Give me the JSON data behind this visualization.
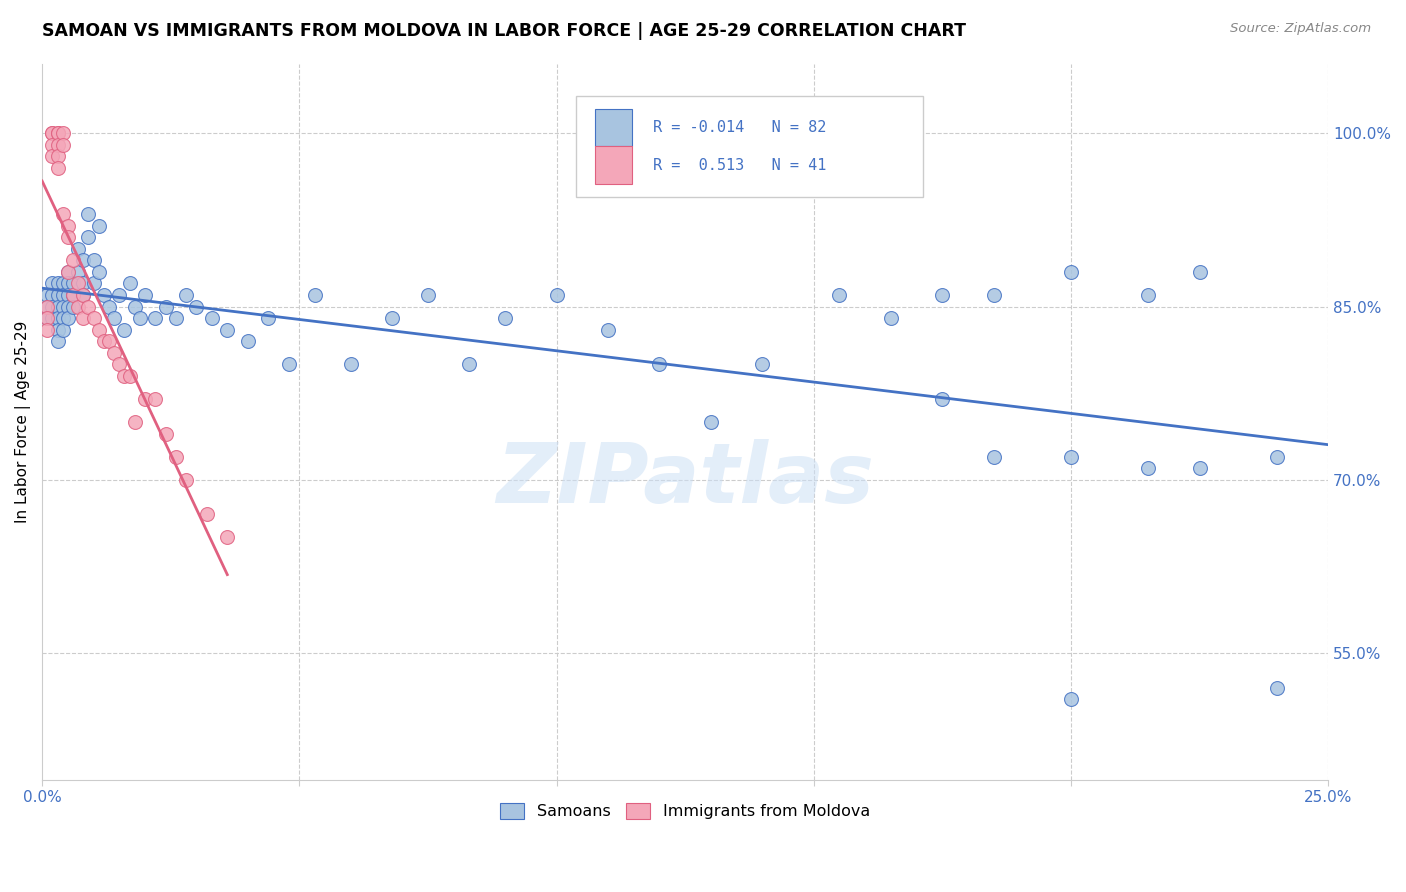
{
  "title": "SAMOAN VS IMMIGRANTS FROM MOLDOVA IN LABOR FORCE | AGE 25-29 CORRELATION CHART",
  "source": "Source: ZipAtlas.com",
  "ylabel": "In Labor Force | Age 25-29",
  "ytick_labels": [
    "100.0%",
    "85.0%",
    "70.0%",
    "55.0%"
  ],
  "ytick_values": [
    1.0,
    0.85,
    0.7,
    0.55
  ],
  "xlim": [
    0.0,
    0.25
  ],
  "ylim": [
    0.44,
    1.06
  ],
  "blue_R": -0.014,
  "blue_N": 82,
  "pink_R": 0.513,
  "pink_N": 41,
  "blue_color": "#a8c4e0",
  "pink_color": "#f4a7b9",
  "trend_blue": "#4472c4",
  "trend_pink": "#e06080",
  "watermark": "ZIPatlas",
  "legend_label_blue": "Samoans",
  "legend_label_pink": "Immigrants from Moldova",
  "blue_x": [
    0.001,
    0.001,
    0.001,
    0.002,
    0.002,
    0.002,
    0.002,
    0.003,
    0.003,
    0.003,
    0.003,
    0.003,
    0.003,
    0.004,
    0.004,
    0.004,
    0.004,
    0.004,
    0.005,
    0.005,
    0.005,
    0.005,
    0.005,
    0.006,
    0.006,
    0.006,
    0.007,
    0.007,
    0.008,
    0.008,
    0.008,
    0.009,
    0.009,
    0.01,
    0.01,
    0.011,
    0.011,
    0.012,
    0.013,
    0.014,
    0.015,
    0.016,
    0.017,
    0.018,
    0.019,
    0.02,
    0.022,
    0.024,
    0.026,
    0.028,
    0.03,
    0.033,
    0.036,
    0.04,
    0.044,
    0.048,
    0.053,
    0.06,
    0.068,
    0.075,
    0.083,
    0.09,
    0.1,
    0.11,
    0.12,
    0.13,
    0.14,
    0.155,
    0.165,
    0.175,
    0.185,
    0.2,
    0.215,
    0.225,
    0.175,
    0.185,
    0.2,
    0.215,
    0.225,
    0.24,
    0.2,
    0.24
  ],
  "blue_y": [
    0.86,
    0.85,
    0.84,
    0.87,
    0.86,
    0.85,
    0.84,
    0.87,
    0.86,
    0.85,
    0.84,
    0.83,
    0.82,
    0.87,
    0.86,
    0.85,
    0.84,
    0.83,
    0.88,
    0.87,
    0.86,
    0.85,
    0.84,
    0.87,
    0.86,
    0.85,
    0.9,
    0.88,
    0.89,
    0.87,
    0.86,
    0.93,
    0.91,
    0.89,
    0.87,
    0.92,
    0.88,
    0.86,
    0.85,
    0.84,
    0.86,
    0.83,
    0.87,
    0.85,
    0.84,
    0.86,
    0.84,
    0.85,
    0.84,
    0.86,
    0.85,
    0.84,
    0.83,
    0.82,
    0.84,
    0.8,
    0.86,
    0.8,
    0.84,
    0.86,
    0.8,
    0.84,
    0.86,
    0.83,
    0.8,
    0.75,
    0.8,
    0.86,
    0.84,
    0.86,
    0.86,
    0.88,
    0.86,
    0.88,
    0.77,
    0.72,
    0.72,
    0.71,
    0.71,
    0.72,
    0.51,
    0.52
  ],
  "pink_x": [
    0.001,
    0.001,
    0.001,
    0.002,
    0.002,
    0.002,
    0.002,
    0.003,
    0.003,
    0.003,
    0.003,
    0.003,
    0.004,
    0.004,
    0.004,
    0.005,
    0.005,
    0.005,
    0.006,
    0.006,
    0.007,
    0.007,
    0.008,
    0.008,
    0.009,
    0.01,
    0.011,
    0.012,
    0.013,
    0.014,
    0.015,
    0.016,
    0.017,
    0.018,
    0.02,
    0.022,
    0.024,
    0.026,
    0.028,
    0.032,
    0.036
  ],
  "pink_y": [
    0.85,
    0.84,
    0.83,
    1.0,
    1.0,
    0.99,
    0.98,
    1.0,
    1.0,
    0.99,
    0.98,
    0.97,
    1.0,
    0.99,
    0.93,
    0.92,
    0.91,
    0.88,
    0.89,
    0.86,
    0.87,
    0.85,
    0.86,
    0.84,
    0.85,
    0.84,
    0.83,
    0.82,
    0.82,
    0.81,
    0.8,
    0.79,
    0.79,
    0.75,
    0.77,
    0.77,
    0.74,
    0.72,
    0.7,
    0.67,
    0.65
  ]
}
